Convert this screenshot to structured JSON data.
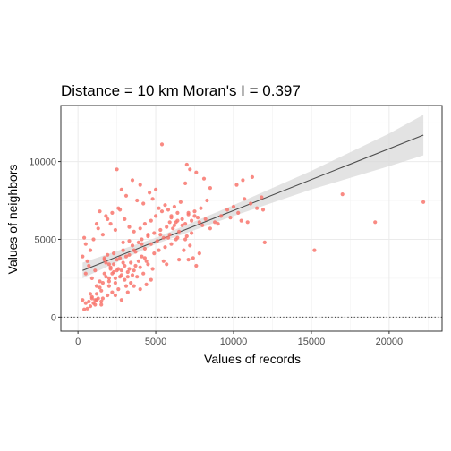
{
  "chart_data": {
    "type": "scatter",
    "title": "Distance = 10 km   Moran's I = 0.397",
    "xlabel": "Values of records",
    "ylabel": "Values of neighbors",
    "xlim": [
      -1100,
      23400
    ],
    "ylim": [
      -900,
      13600
    ],
    "x_ticks": [
      0,
      5000,
      10000,
      15000,
      20000
    ],
    "x_tick_labels": [
      "0",
      "5000",
      "10000",
      "15000",
      "20000"
    ],
    "y_ticks": [
      0,
      5000,
      10000
    ],
    "y_tick_labels": [
      "0",
      "5000",
      "10000"
    ],
    "grid": true,
    "legend": "none",
    "point_color": "#F8766D",
    "regression_line": {
      "x": [
        300,
        22200
      ],
      "y": [
        3000,
        11700
      ],
      "color": "#4d4d4d"
    },
    "confidence_band": {
      "x": [
        300,
        5000,
        10000,
        15000,
        20000,
        22200
      ],
      "lower": [
        2500,
        4700,
        6500,
        8200,
        9700,
        10400
      ],
      "upper": [
        3500,
        5100,
        7200,
        9400,
        11800,
        13000
      ],
      "color": "#d9d9d9"
    },
    "reference_line": {
      "y": 0,
      "style": "dotted"
    },
    "points": [
      [
        400,
        500
      ],
      [
        600,
        550
      ],
      [
        800,
        700
      ],
      [
        1000,
        900
      ],
      [
        1200,
        1100
      ],
      [
        900,
        1300
      ],
      [
        700,
        1000
      ],
      [
        1100,
        800
      ],
      [
        1300,
        1200
      ],
      [
        1500,
        1000
      ],
      [
        500,
        900
      ],
      [
        800,
        1500
      ],
      [
        1200,
        2000
      ],
      [
        1600,
        2200
      ],
      [
        1800,
        2600
      ],
      [
        2000,
        2300
      ],
      [
        2200,
        2800
      ],
      [
        2400,
        2500
      ],
      [
        2600,
        3100
      ],
      [
        2800,
        2700
      ],
      [
        3000,
        3300
      ],
      [
        3200,
        2900
      ],
      [
        3400,
        3500
      ],
      [
        3600,
        3000
      ],
      [
        3800,
        2600
      ],
      [
        4000,
        3200
      ],
      [
        4200,
        2800
      ],
      [
        4400,
        3600
      ],
      [
        2000,
        3400
      ],
      [
        1700,
        3800
      ],
      [
        2300,
        4100
      ],
      [
        2500,
        3700
      ],
      [
        2900,
        4300
      ],
      [
        3100,
        3900
      ],
      [
        3500,
        4600
      ],
      [
        3300,
        4900
      ],
      [
        3700,
        4200
      ],
      [
        3900,
        4800
      ],
      [
        4100,
        5000
      ],
      [
        4300,
        4400
      ],
      [
        4500,
        5200
      ],
      [
        4700,
        4700
      ],
      [
        4900,
        5400
      ],
      [
        5100,
        4900
      ],
      [
        5300,
        5600
      ],
      [
        5500,
        5100
      ],
      [
        5700,
        5800
      ],
      [
        5900,
        5300
      ],
      [
        6100,
        5700
      ],
      [
        6300,
        6100
      ],
      [
        6500,
        5500
      ],
      [
        6700,
        6300
      ],
      [
        6900,
        6000
      ],
      [
        7100,
        6600
      ],
      [
        7300,
        6200
      ],
      [
        7500,
        6800
      ],
      [
        7700,
        6400
      ],
      [
        5000,
        6500
      ],
      [
        5200,
        7000
      ],
      [
        5400,
        6800
      ],
      [
        5600,
        7200
      ],
      [
        5800,
        6900
      ],
      [
        6000,
        6400
      ],
      [
        6200,
        7100
      ],
      [
        6400,
        6700
      ],
      [
        6600,
        7400
      ],
      [
        4800,
        7600
      ],
      [
        5000,
        8200
      ],
      [
        4200,
        7300
      ],
      [
        3800,
        7500
      ],
      [
        4000,
        8500
      ],
      [
        4600,
        8000
      ],
      [
        3500,
        8800
      ],
      [
        3100,
        7800
      ],
      [
        2800,
        8200
      ],
      [
        2500,
        9500
      ],
      [
        2600,
        7000
      ],
      [
        1800,
        6500
      ],
      [
        1400,
        6800
      ],
      [
        1300,
        5700
      ],
      [
        1600,
        5300
      ],
      [
        1000,
        5000
      ],
      [
        800,
        4300
      ],
      [
        600,
        3600
      ],
      [
        500,
        4700
      ],
      [
        400,
        5100
      ],
      [
        300,
        3900
      ],
      [
        500,
        2800
      ],
      [
        700,
        3300
      ],
      [
        900,
        2500
      ],
      [
        1100,
        3000
      ],
      [
        1400,
        2300
      ],
      [
        1700,
        3700
      ],
      [
        1900,
        4000
      ],
      [
        2100,
        3100
      ],
      [
        2300,
        3400
      ],
      [
        2700,
        3800
      ],
      [
        3000,
        2400
      ],
      [
        3400,
        2200
      ],
      [
        3600,
        2000
      ],
      [
        4000,
        1800
      ],
      [
        4400,
        2100
      ],
      [
        4700,
        2400
      ],
      [
        2600,
        1800
      ],
      [
        2200,
        1600
      ],
      [
        1900,
        1400
      ],
      [
        1500,
        1700
      ],
      [
        1200,
        1500
      ],
      [
        2000,
        2000
      ],
      [
        2400,
        2200
      ],
      [
        2800,
        3000
      ],
      [
        3200,
        2600
      ],
      [
        3300,
        4000
      ],
      [
        2900,
        4800
      ],
      [
        2400,
        5600
      ],
      [
        2100,
        6000
      ],
      [
        1900,
        6300
      ],
      [
        2200,
        6700
      ],
      [
        2700,
        6900
      ],
      [
        3000,
        6300
      ],
      [
        3300,
        5800
      ],
      [
        3600,
        5500
      ],
      [
        4000,
        5700
      ],
      [
        4300,
        6000
      ],
      [
        4700,
        6200
      ],
      [
        5500,
        3600
      ],
      [
        5700,
        3400
      ],
      [
        6500,
        3700
      ],
      [
        6800,
        4300
      ],
      [
        7000,
        5200
      ],
      [
        7200,
        4600
      ],
      [
        7400,
        3800
      ],
      [
        7600,
        3300
      ],
      [
        7800,
        4100
      ],
      [
        8000,
        5900
      ],
      [
        8200,
        6300
      ],
      [
        8500,
        5700
      ],
      [
        8800,
        6100
      ],
      [
        9200,
        6500
      ],
      [
        9600,
        6900
      ],
      [
        9800,
        6400
      ],
      [
        10000,
        7100
      ],
      [
        10300,
        6700
      ],
      [
        10500,
        6200
      ],
      [
        10700,
        7600
      ],
      [
        10900,
        6100
      ],
      [
        11100,
        7300
      ],
      [
        11500,
        7000
      ],
      [
        11800,
        7700
      ],
      [
        12000,
        4800
      ],
      [
        11900,
        6900
      ],
      [
        10200,
        8500
      ],
      [
        10600,
        8800
      ],
      [
        11200,
        9000
      ],
      [
        7000,
        9800
      ],
      [
        7200,
        9500
      ],
      [
        7600,
        9300
      ],
      [
        6900,
        8600
      ],
      [
        8100,
        8900
      ],
      [
        8500,
        8300
      ],
      [
        5400,
        11100
      ],
      [
        6000,
        6500
      ],
      [
        6300,
        5000
      ],
      [
        7100,
        3700
      ],
      [
        6400,
        6200
      ],
      [
        5800,
        5100
      ],
      [
        5300,
        5300
      ],
      [
        4900,
        4100
      ],
      [
        4500,
        3400
      ],
      [
        4100,
        3900
      ],
      [
        3700,
        3300
      ],
      [
        3500,
        2700
      ],
      [
        3100,
        2000
      ],
      [
        2700,
        2600
      ],
      [
        2300,
        2900
      ],
      [
        2000,
        2500
      ],
      [
        1700,
        2800
      ],
      [
        1400,
        1900
      ],
      [
        1100,
        1100
      ],
      [
        900,
        1200
      ],
      [
        300,
        1100
      ],
      [
        1200,
        6000
      ],
      [
        1800,
        3500
      ],
      [
        2100,
        3200
      ],
      [
        2500,
        3000
      ],
      [
        2900,
        3500
      ],
      [
        3300,
        3100
      ],
      [
        3900,
        3600
      ],
      [
        4300,
        3800
      ],
      [
        4800,
        3100
      ],
      [
        5200,
        4300
      ],
      [
        5600,
        4500
      ],
      [
        6000,
        4700
      ],
      [
        6400,
        5100
      ],
      [
        6900,
        5000
      ],
      [
        7300,
        5400
      ],
      [
        7800,
        6100
      ],
      [
        8300,
        7500
      ],
      [
        9000,
        6000
      ],
      [
        15200,
        4300
      ],
      [
        17000,
        7900
      ],
      [
        19100,
        6100
      ],
      [
        22200,
        7400
      ],
      [
        1500,
        800
      ],
      [
        1600,
        1200
      ],
      [
        2400,
        1400
      ],
      [
        2800,
        1100
      ],
      [
        3200,
        1600
      ],
      [
        3600,
        4300
      ],
      [
        4100,
        4700
      ],
      [
        4500,
        5300
      ],
      [
        5900,
        6100
      ],
      [
        6200,
        5900
      ],
      [
        6700,
        5900
      ],
      [
        7100,
        6700
      ],
      [
        7500,
        6500
      ],
      [
        7900,
        7000
      ]
    ]
  }
}
